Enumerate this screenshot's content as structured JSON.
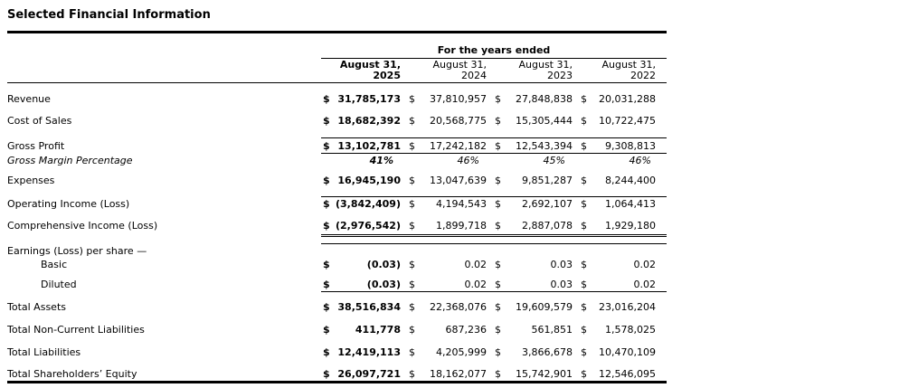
{
  "page": {
    "title": "Selected Financial Information"
  },
  "table": {
    "currency_symbol": "$",
    "group_header": "For the years ended",
    "columns": [
      {
        "line1": "August 31,",
        "line2": "2025"
      },
      {
        "line1": "August 31,",
        "line2": "2024"
      },
      {
        "line1": "August 31,",
        "line2": "2023"
      },
      {
        "line1": "August 31,",
        "line2": "2022"
      }
    ],
    "rows": {
      "revenue": {
        "label": "Revenue",
        "values": [
          "31,785,173",
          "37,810,957",
          "27,848,838",
          "20,031,288"
        ]
      },
      "cost_of_sales": {
        "label": "Cost of Sales",
        "values": [
          "18,682,392",
          "20,568,775",
          "15,305,444",
          "10,722,475"
        ]
      },
      "gross_profit": {
        "label": "Gross Profit",
        "values": [
          "13,102,781",
          "17,242,182",
          "12,543,394",
          "9,308,813"
        ]
      },
      "gross_margin": {
        "label": "Gross Margin Percentage",
        "values": [
          "41%",
          "46%",
          "45%",
          "46%"
        ]
      },
      "expenses": {
        "label": "Expenses",
        "values": [
          "16,945,190",
          "13,047,639",
          "9,851,287",
          "8,244,400"
        ]
      },
      "operating_income": {
        "label": "Operating Income (Loss)",
        "values": [
          "(3,842,409)",
          "4,194,543",
          "2,692,107",
          "1,064,413"
        ]
      },
      "comprehensive_income": {
        "label": "Comprehensive Income (Loss)",
        "values": [
          "(2,976,542)",
          "1,899,718",
          "2,887,078",
          "1,929,180"
        ]
      },
      "eps_header": {
        "label": "Earnings (Loss) per share —"
      },
      "eps_basic": {
        "label": "Basic",
        "values": [
          "(0.03)",
          "0.02",
          "0.03",
          "0.02"
        ]
      },
      "eps_diluted": {
        "label": "Diluted",
        "values": [
          "(0.03)",
          "0.02",
          "0.03",
          "0.02"
        ]
      },
      "total_assets": {
        "label": "Total Assets",
        "values": [
          "38,516,834",
          "22,368,076",
          "19,609,579",
          "23,016,204"
        ]
      },
      "total_non_current_liabilities": {
        "label": "Total Non-Current Liabilities",
        "values": [
          "411,778",
          "687,236",
          "561,851",
          "1,578,025"
        ]
      },
      "total_liabilities": {
        "label": "Total Liabilities",
        "values": [
          "12,419,113",
          "4,205,999",
          "3,866,678",
          "10,470,109"
        ]
      },
      "total_shareholders_equity": {
        "label": "Total Shareholders’ Equity",
        "values": [
          "26,097,721",
          "18,162,077",
          "15,742,901",
          "12,546,095"
        ]
      }
    }
  }
}
